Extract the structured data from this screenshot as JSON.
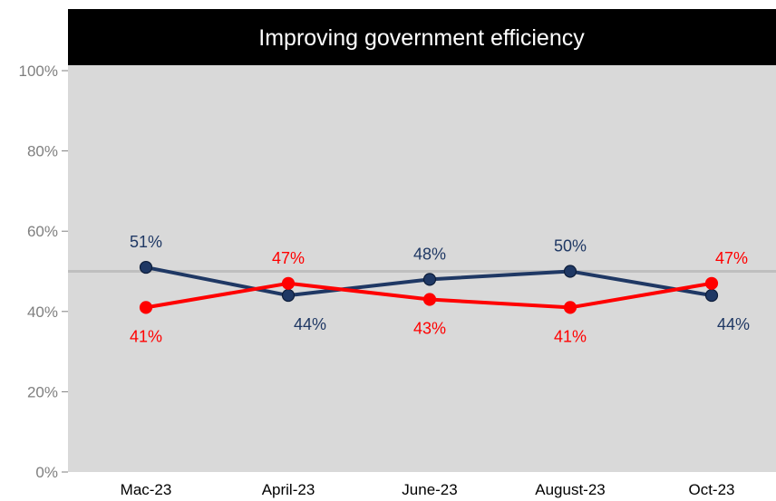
{
  "colors": {
    "background": "#ffffff",
    "plot_area": "#d9d9d9",
    "title_bar": "#000000",
    "title_text": "#ffffff",
    "reference_line": "#bfbfbf",
    "axis_tick_text": "#7f7f7f",
    "category_text": "#000000"
  },
  "chart_data": {
    "type": "line",
    "title": "Improving government efficiency",
    "xlabel": "",
    "ylabel": "",
    "ylim": [
      0,
      100
    ],
    "yticks": [
      "0%",
      "20%",
      "40%",
      "60%",
      "80%",
      "100%"
    ],
    "categories": [
      "Mac-23",
      "April-23",
      "June-23",
      "August-23",
      "Oct-23"
    ],
    "reference_line": 50,
    "grid": false,
    "legend": "none",
    "series": [
      {
        "color": "#1f3864",
        "values": [
          51,
          44,
          48,
          50,
          44
        ],
        "labels": [
          "51%",
          "44%",
          "48%",
          "50%",
          "44%"
        ]
      },
      {
        "color": "#ff0000",
        "values": [
          41,
          47,
          43,
          41,
          47
        ],
        "labels": [
          "41%",
          "47%",
          "43%",
          "41%",
          "47%"
        ]
      }
    ]
  }
}
